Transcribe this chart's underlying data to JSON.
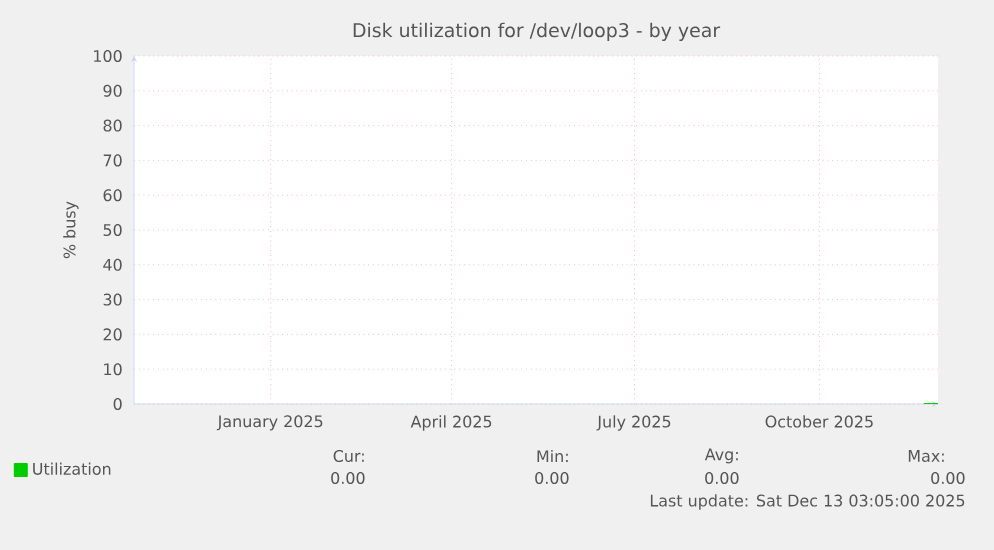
{
  "chart_data": {
    "type": "line",
    "title": "Disk utilization for /dev/loop3 - by year",
    "ylabel": "% busy",
    "x": [
      "2025-12-06",
      "2025-12-13"
    ],
    "series": [
      {
        "name": "Utilization",
        "color": "#00cc00",
        "values": [
          0,
          0
        ]
      }
    ],
    "xlim": [
      "2024-11-08",
      "2025-12-13"
    ],
    "xticks": [
      {
        "value": "2025-01-15",
        "label": "January 2025"
      },
      {
        "value": "2025-04-15",
        "label": "April 2025"
      },
      {
        "value": "2025-07-15",
        "label": "July 2025"
      },
      {
        "value": "2025-10-15",
        "label": "October 2025"
      }
    ],
    "ylim": [
      0,
      100
    ],
    "yticks": [
      0,
      10,
      20,
      30,
      40,
      50,
      60,
      70,
      80,
      90,
      100
    ],
    "grid": true,
    "legend": "bottom left",
    "annotations": [
      "Cur:",
      "Min:",
      "Avg:",
      "Max:",
      "0.00",
      "0.00",
      "0.00",
      "0.00",
      "Last update: Sat Dec 13 03:05:00 2025"
    ]
  }
}
